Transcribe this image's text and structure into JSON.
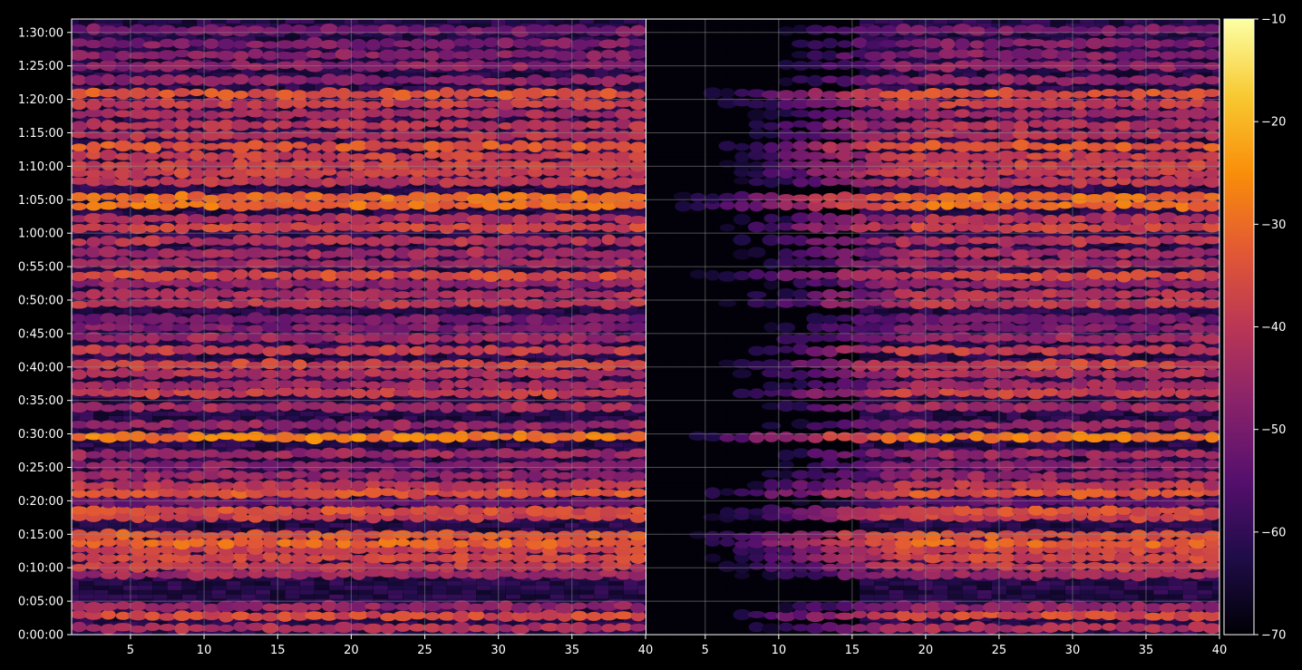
{
  "chart_data": {
    "type": "heatmap",
    "title": "",
    "panels": [
      {
        "name": "",
        "xlim": [
          1,
          40
        ],
        "xticks": [
          5,
          10,
          15,
          20,
          25,
          30,
          35,
          40
        ],
        "xtick_labels": [
          "5",
          "10",
          "15",
          "20",
          "25",
          "30",
          "35",
          "40"
        ],
        "band_profile": {
          "x": [
            1,
            5,
            10,
            15,
            20,
            25,
            30,
            35,
            40
          ],
          "start_level": -48
        },
        "quiet_region": null
      },
      {
        "name": "",
        "xlim": [
          1,
          40
        ],
        "xticks": [
          5,
          10,
          15,
          20,
          25,
          30,
          35,
          40
        ],
        "xtick_labels": [
          "5",
          "10",
          "15",
          "20",
          "25",
          "30",
          "35",
          "40"
        ],
        "quiet_region": {
          "x_start": 1,
          "x_end": 15
        }
      }
    ],
    "ylim_seconds": [
      0,
      5520
    ],
    "yticks": [
      {
        "label": "0:00:00",
        "seconds": 0
      },
      {
        "label": "0:05:00",
        "seconds": 300
      },
      {
        "label": "0:10:00",
        "seconds": 600
      },
      {
        "label": "0:15:00",
        "seconds": 900
      },
      {
        "label": "0:20:00",
        "seconds": 1200
      },
      {
        "label": "0:25:00",
        "seconds": 1500
      },
      {
        "label": "0:30:00",
        "seconds": 1800
      },
      {
        "label": "0:35:00",
        "seconds": 2100
      },
      {
        "label": "0:40:00",
        "seconds": 2400
      },
      {
        "label": "0:45:00",
        "seconds": 2700
      },
      {
        "label": "0:50:00",
        "seconds": 3000
      },
      {
        "label": "0:55:00",
        "seconds": 3300
      },
      {
        "label": "1:00:00",
        "seconds": 3600
      },
      {
        "label": "1:05:00",
        "seconds": 3900
      },
      {
        "label": "1:10:00",
        "seconds": 4200
      },
      {
        "label": "1:15:00",
        "seconds": 4500
      },
      {
        "label": "1:20:00",
        "seconds": 4800
      },
      {
        "label": "1:25:00",
        "seconds": 5100
      },
      {
        "label": "1:30:00",
        "seconds": 5400
      }
    ],
    "bands": [
      {
        "t": 60,
        "level": -42
      },
      {
        "t": 170,
        "level": -36
      },
      {
        "t": 250,
        "level": -46
      },
      {
        "t": 540,
        "level": -44
      },
      {
        "t": 610,
        "level": -39
      },
      {
        "t": 690,
        "level": -37
      },
      {
        "t": 760,
        "level": -37
      },
      {
        "t": 820,
        "level": -31
      },
      {
        "t": 890,
        "level": -33
      },
      {
        "t": 1060,
        "level": -38
      },
      {
        "t": 1110,
        "level": -35
      },
      {
        "t": 1190,
        "level": -52
      },
      {
        "t": 1270,
        "level": -34
      },
      {
        "t": 1340,
        "level": -40
      },
      {
        "t": 1430,
        "level": -46
      },
      {
        "t": 1520,
        "level": -48
      },
      {
        "t": 1620,
        "level": -45
      },
      {
        "t": 1770,
        "level": -28
      },
      {
        "t": 1880,
        "level": -46
      },
      {
        "t": 2040,
        "level": -44
      },
      {
        "t": 2170,
        "level": -38
      },
      {
        "t": 2240,
        "level": -45
      },
      {
        "t": 2340,
        "level": -42
      },
      {
        "t": 2420,
        "level": -37
      },
      {
        "t": 2550,
        "level": -39
      },
      {
        "t": 2660,
        "level": -45
      },
      {
        "t": 2750,
        "level": -49
      },
      {
        "t": 2830,
        "level": -50
      },
      {
        "t": 2970,
        "level": -40
      },
      {
        "t": 3050,
        "level": -42
      },
      {
        "t": 3150,
        "level": -46
      },
      {
        "t": 3220,
        "level": -36
      },
      {
        "t": 3330,
        "level": -44
      },
      {
        "t": 3420,
        "level": -44
      },
      {
        "t": 3530,
        "level": -41
      },
      {
        "t": 3650,
        "level": -37
      },
      {
        "t": 3730,
        "level": -42
      },
      {
        "t": 3850,
        "level": -30
      },
      {
        "t": 3920,
        "level": -30
      },
      {
        "t": 4060,
        "level": -40
      },
      {
        "t": 4140,
        "level": -38
      },
      {
        "t": 4210,
        "level": -38
      },
      {
        "t": 4290,
        "level": -38
      },
      {
        "t": 4380,
        "level": -34
      },
      {
        "t": 4480,
        "level": -41
      },
      {
        "t": 4570,
        "level": -41
      },
      {
        "t": 4670,
        "level": -44
      },
      {
        "t": 4760,
        "level": -39
      },
      {
        "t": 4850,
        "level": -34
      },
      {
        "t": 4970,
        "level": -47
      },
      {
        "t": 5100,
        "level": -47
      },
      {
        "t": 5200,
        "level": -48
      },
      {
        "t": 5300,
        "level": -49
      },
      {
        "t": 5420,
        "level": -50
      }
    ],
    "colorbar": {
      "colormap": "inferno",
      "range": [
        -70,
        -10
      ],
      "ticks": [
        -70,
        -60,
        -50,
        -40,
        -30,
        -20,
        -10
      ],
      "tick_labels": [
        "−70",
        "−60",
        "−50",
        "−40",
        "−30",
        "−20",
        "−10"
      ]
    },
    "grid": true,
    "colors": {
      "background": "#000000",
      "grid": "#8a8a8a",
      "frame": "#ffffff"
    }
  }
}
